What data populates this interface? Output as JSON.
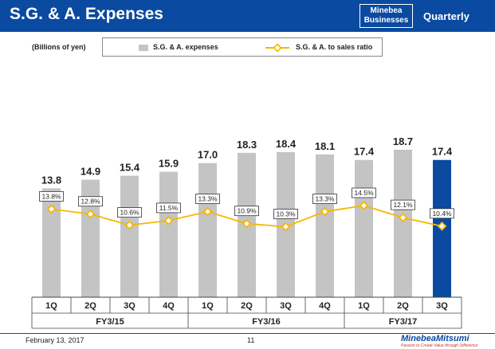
{
  "header": {
    "title": "S.G. & A. Expenses",
    "badge_line1": "Minebea",
    "badge_line2": "Businesses",
    "period": "Quarterly"
  },
  "unit": "(Billions of yen)",
  "legend": {
    "bar_label": "S.G. & A. expenses",
    "line_label": "S.G. & A. to sales ratio"
  },
  "colors": {
    "header": "#0a4aa0",
    "bar": "#c4c4c4",
    "bar_highlight": "#0a4aa0",
    "line": "#f5b800"
  },
  "chart_data": {
    "type": "bar",
    "title": "S.G. & A. Expenses",
    "ylabel": "Billions of yen",
    "ylim": [
      0,
      20
    ],
    "categories": [
      "1Q",
      "2Q",
      "3Q",
      "4Q",
      "1Q",
      "2Q",
      "3Q",
      "4Q",
      "1Q",
      "2Q",
      "3Q"
    ],
    "groups": [
      {
        "label": "FY3/15",
        "count": 4
      },
      {
        "label": "FY3/16",
        "count": 4
      },
      {
        "label": "FY3/17",
        "count": 3
      }
    ],
    "series": [
      {
        "name": "S.G. & A. expenses",
        "type": "bar",
        "values": [
          13.8,
          14.9,
          15.4,
          15.9,
          17.0,
          18.3,
          18.4,
          18.1,
          17.4,
          18.7,
          17.4
        ],
        "labels": [
          "13.8",
          "14.9",
          "15.4",
          "15.9",
          "17.0",
          "18.3",
          "18.4",
          "18.1",
          "17.4",
          "18.7",
          "17.4"
        ]
      },
      {
        "name": "S.G. & A. to sales ratio",
        "type": "line",
        "values": [
          13.8,
          12.8,
          10.6,
          11.5,
          13.3,
          10.9,
          10.3,
          13.3,
          14.5,
          12.1,
          10.4
        ],
        "labels": [
          "13.8%",
          "12.8%",
          "10.6%",
          "11.5%",
          "13.3%",
          "10.9%",
          "10.3%",
          "13.3%",
          "14.5%",
          "12.1%",
          "10.4%"
        ]
      }
    ],
    "highlight_index": 10
  },
  "footer": {
    "date": "February 13, 2017",
    "page": "11",
    "logo": "MinebeaMitsumi",
    "tagline": "Passion to Create Value through Difference"
  }
}
